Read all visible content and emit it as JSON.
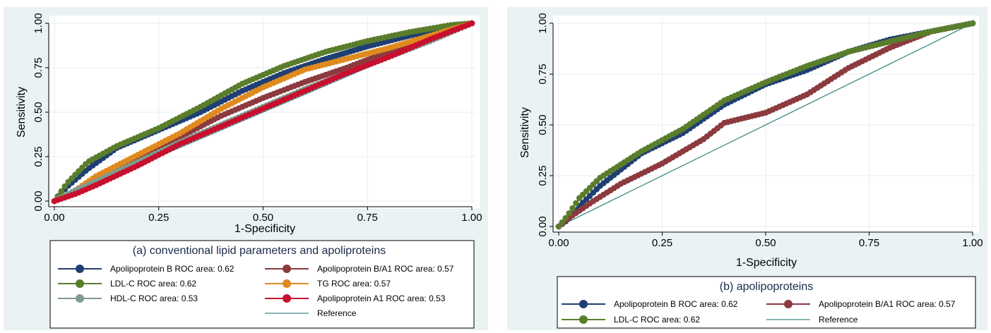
{
  "chart_data": [
    {
      "type": "line",
      "title": "(a) conventional lipid parameters and apoliproteins",
      "xlabel": "1-Specificity",
      "ylabel": "Sensitivity",
      "xlim": [
        0,
        1
      ],
      "ylim": [
        0,
        1
      ],
      "x_ticks": [
        "0.00",
        "0.25",
        "0.50",
        "0.75",
        "1.00"
      ],
      "y_ticks": [
        "0.00",
        "0.25",
        "0.50",
        "0.75",
        "1.00"
      ],
      "grid": true,
      "legend": "bottom",
      "series": [
        {
          "name": "Apolipoprotein B ROC area: 0.62",
          "color": "#1f3f73",
          "x": [
            0,
            0.03,
            0.08,
            0.15,
            0.25,
            0.35,
            0.45,
            0.55,
            0.65,
            0.75,
            0.85,
            0.95,
            1.0
          ],
          "y": [
            0,
            0.08,
            0.18,
            0.3,
            0.4,
            0.5,
            0.62,
            0.72,
            0.8,
            0.87,
            0.93,
            0.98,
            1.0
          ]
        },
        {
          "name": "Apolipoprotein B/A1 ROC area: 0.57",
          "color": "#8b3a3e",
          "x": [
            0,
            0.05,
            0.1,
            0.2,
            0.3,
            0.4,
            0.5,
            0.6,
            0.7,
            0.8,
            0.9,
            1.0
          ],
          "y": [
            0,
            0.05,
            0.12,
            0.24,
            0.36,
            0.48,
            0.58,
            0.67,
            0.75,
            0.84,
            0.92,
            1.0
          ]
        },
        {
          "name": "LDL-C ROC area: 0.62",
          "color": "#5a7d2c",
          "x": [
            0,
            0.03,
            0.08,
            0.15,
            0.25,
            0.35,
            0.45,
            0.55,
            0.65,
            0.75,
            0.85,
            0.95,
            1.0
          ],
          "y": [
            0,
            0.1,
            0.22,
            0.31,
            0.41,
            0.53,
            0.66,
            0.76,
            0.84,
            0.9,
            0.95,
            0.99,
            1.0
          ]
        },
        {
          "name": "TG ROC area: 0.57",
          "color": "#e08a1e",
          "x": [
            0,
            0.05,
            0.1,
            0.2,
            0.3,
            0.4,
            0.5,
            0.6,
            0.7,
            0.8,
            0.9,
            1.0
          ],
          "y": [
            0,
            0.06,
            0.14,
            0.26,
            0.38,
            0.52,
            0.64,
            0.74,
            0.8,
            0.86,
            0.93,
            1.0
          ]
        },
        {
          "name": "HDL-C ROC area: 0.53",
          "color": "#7f9c91",
          "x": [
            0,
            0.05,
            0.1,
            0.2,
            0.3,
            0.4,
            0.5,
            0.6,
            0.7,
            0.8,
            0.9,
            1.0
          ],
          "y": [
            0,
            0.06,
            0.11,
            0.22,
            0.33,
            0.43,
            0.53,
            0.63,
            0.72,
            0.81,
            0.9,
            1.0
          ]
        },
        {
          "name": "Apolipoprotein A1 ROC area: 0.53",
          "color": "#c8102e",
          "x": [
            0,
            0.05,
            0.1,
            0.2,
            0.3,
            0.4,
            0.5,
            0.6,
            0.7,
            0.8,
            0.9,
            1.0
          ],
          "y": [
            0,
            0.04,
            0.09,
            0.2,
            0.32,
            0.42,
            0.52,
            0.62,
            0.72,
            0.81,
            0.91,
            1.0
          ]
        }
      ],
      "reference": {
        "name": "Reference",
        "color": "#3f8a85",
        "x": [
          0,
          1
        ],
        "y": [
          0,
          1
        ]
      }
    },
    {
      "type": "line",
      "title": "(b) apolipoproteins",
      "xlabel": "1-Specificity",
      "ylabel": "Sensitivity",
      "xlim": [
        0,
        1
      ],
      "ylim": [
        0,
        1
      ],
      "x_ticks": [
        "0.00",
        "0.25",
        "0.50",
        "0.75",
        "1.00"
      ],
      "y_ticks": [
        "0.00",
        "0.25",
        "0.50",
        "0.75",
        "1.00"
      ],
      "grid": true,
      "legend": "bottom",
      "series": [
        {
          "name": "Apolipoprotein B ROC area: 0.62",
          "color": "#1f3f73",
          "x": [
            0,
            0.02,
            0.05,
            0.1,
            0.2,
            0.3,
            0.4,
            0.5,
            0.6,
            0.7,
            0.8,
            0.9,
            1.0
          ],
          "y": [
            0,
            0.03,
            0.1,
            0.2,
            0.36,
            0.46,
            0.6,
            0.7,
            0.77,
            0.86,
            0.92,
            0.96,
            1.0
          ]
        },
        {
          "name": "Apolipoprotein B/A1 ROC area: 0.57",
          "color": "#8b3a3e",
          "x": [
            0,
            0.03,
            0.08,
            0.15,
            0.25,
            0.35,
            0.4,
            0.5,
            0.6,
            0.7,
            0.8,
            0.9,
            1.0
          ],
          "y": [
            0,
            0.05,
            0.12,
            0.21,
            0.31,
            0.43,
            0.51,
            0.56,
            0.65,
            0.78,
            0.88,
            0.96,
            1.0
          ]
        },
        {
          "name": "LDL-C ROC area: 0.62",
          "color": "#5a7d2c",
          "x": [
            0,
            0.02,
            0.05,
            0.1,
            0.2,
            0.3,
            0.4,
            0.5,
            0.6,
            0.7,
            0.8,
            0.9,
            1.0
          ],
          "y": [
            0,
            0.05,
            0.14,
            0.24,
            0.37,
            0.48,
            0.62,
            0.71,
            0.79,
            0.86,
            0.91,
            0.96,
            1.0
          ]
        }
      ],
      "reference": {
        "name": "Reference",
        "color": "#3f8a85",
        "x": [
          0,
          1
        ],
        "y": [
          0,
          1
        ]
      }
    }
  ]
}
